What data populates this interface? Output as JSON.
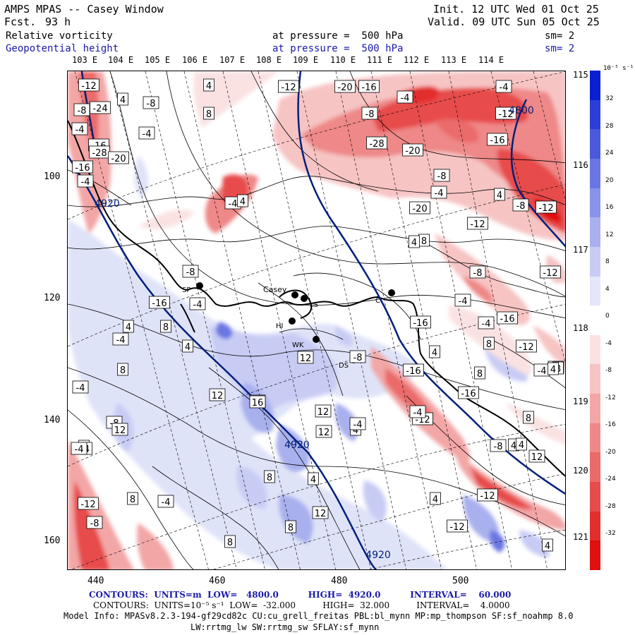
{
  "header": {
    "model": "AMPS MPAS -- Casey Window",
    "fcst_label": "Fcst.",
    "fcst_value": "93 h",
    "init": "Init. 12 UTC Wed 01 Oct 25",
    "valid": "Valid. 09 UTC Sun 05 Oct 25",
    "field1_name": "Relative vorticity",
    "field2_name": "Geopotential height",
    "field1_level": "at pressure =  500 hPa",
    "field2_level": "at pressure =  500 hPa",
    "field1_sm": "sm= 2",
    "field2_sm": "sm= 2"
  },
  "axes": {
    "lon_labels": [
      "103 E",
      "104 E",
      "105 E",
      "106 E",
      "107 E",
      "108 E",
      "109 E",
      "110 E",
      "111 E",
      "112 E",
      "113 E",
      "114 E"
    ],
    "right_lon_labels": [
      "115 E",
      "116 E",
      "117 E",
      "118 E",
      "119 E",
      "120 E",
      "121 E"
    ],
    "x_ticks": [
      "440",
      "460",
      "480",
      "500"
    ],
    "y_ticks": [
      "100",
      "120",
      "140",
      "160"
    ]
  },
  "colorbar": {
    "units": "10⁻⁵ s⁻¹",
    "ticks": [
      "32",
      "28",
      "24",
      "20",
      "16",
      "12",
      "8",
      "4",
      "0",
      "-4",
      "-8",
      "-12",
      "-16",
      "-20",
      "-24",
      "-28",
      "-32"
    ],
    "colors": [
      "#0a1fd0",
      "#2b3ed6",
      "#4a5adc",
      "#6a77e2",
      "#8993e8",
      "#a9b0ee",
      "#c8ccf4",
      "#e4e6fa",
      "#ffffff",
      "#fbe2e2",
      "#f7c4c4",
      "#f3a6a6",
      "#ef8888",
      "#eb6a6a",
      "#e74c4c",
      "#e32e2e",
      "#df1010"
    ]
  },
  "stations": [
    {
      "name": "Casey",
      "label": "Casey"
    },
    {
      "name": "SP",
      "label": "SP"
    },
    {
      "name": "LS",
      "label": "LS"
    },
    {
      "name": "HI",
      "label": "HI"
    },
    {
      "name": "WK",
      "label": "WK"
    },
    {
      "name": "DS",
      "label": "DS"
    },
    {
      "name": "C",
      "label": "C"
    }
  ],
  "vorticity_labels": [
    "-12",
    "-8",
    "4",
    "-8",
    "-4",
    "4",
    "8",
    "-4",
    "-12",
    "-16",
    "-28",
    "-16",
    "-4",
    "-20",
    "-24",
    "-20",
    "-16",
    "-4",
    "-8",
    "-4",
    "-12",
    "-28",
    "-20",
    "-8",
    "-16",
    "-4",
    "4",
    "-8",
    "-12",
    "-12",
    "-20",
    "-4",
    "4",
    "8",
    "-8",
    "-16",
    "-12",
    "-4",
    "4",
    "-16",
    "-8",
    "12",
    "-4",
    "-4",
    "4",
    "4",
    "8",
    "4",
    "-8",
    "12",
    "16",
    "12",
    "4",
    "-12",
    "8",
    "-4",
    "-8",
    "12",
    "8",
    "4",
    "-16",
    "4",
    "-12",
    "-4",
    "8",
    "12",
    "8",
    "4",
    "-4",
    "-8",
    "4",
    "-12",
    "-4",
    "-12",
    "8",
    "8",
    "12",
    "8",
    "12",
    "-4",
    "-12",
    "4",
    "8",
    "4",
    "-4",
    "-8",
    "-16",
    "8",
    "-4",
    "4",
    "-16",
    "-4",
    "-8",
    "4",
    "-4"
  ],
  "height_labels": [
    "4800",
    "4920",
    "4920",
    "4920"
  ],
  "footer": {
    "contours1": "CONTOURS:  UNITS=m  LOW=   4800.0          HIGH=  4920.0          INTERVAL=    60.000",
    "contours2": "CONTOURS:  UNITS=10⁻⁵ s⁻¹  LOW=  -32.000          HIGH=  32.000          INTERVAL=    4.0000",
    "model_info": "Model Info: MPASv8.2.3-194-gf29cd82c CU:cu_grell_freitas PBL:bl_mynn MP:mp_thompson SF:sf_noahmp 8.0",
    "model_info2": "LW:rrtmg_lw SW:rrtmg_sw SFLAY:sf_mynn"
  }
}
